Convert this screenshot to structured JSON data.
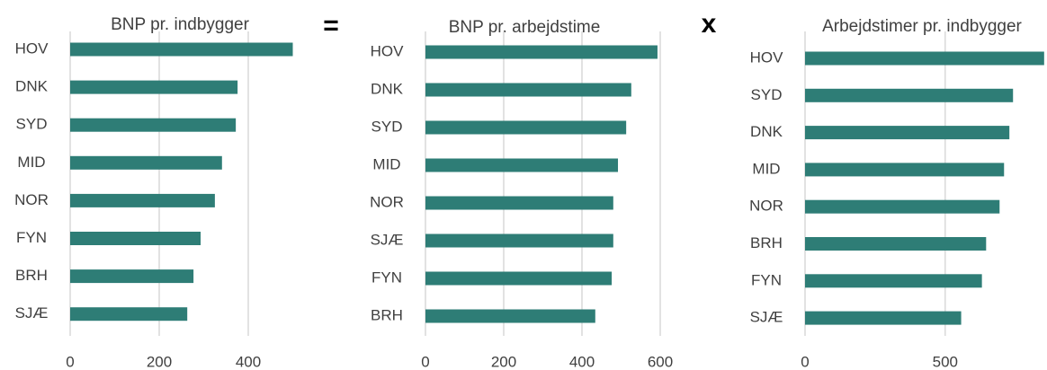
{
  "operators": [
    "=",
    "x"
  ],
  "chart_data": [
    {
      "type": "bar",
      "orientation": "horizontal",
      "title": "BNP pr. indbygger",
      "color": "#2e7d76",
      "categories": [
        "HOV",
        "DNK",
        "SYD",
        "MID",
        "NOR",
        "FYN",
        "BRH",
        "SJÆ"
      ],
      "values": [
        500,
        376,
        372,
        341,
        325,
        293,
        277,
        263
      ],
      "xlim": [
        0,
        500
      ],
      "xticks": [
        0,
        200,
        400
      ],
      "grid": true
    },
    {
      "type": "bar",
      "orientation": "horizontal",
      "title": "BNP pr. arbejdstime",
      "color": "#2e7d76",
      "categories": [
        "HOV",
        "DNK",
        "SYD",
        "MID",
        "NOR",
        "SJÆ",
        "FYN",
        "BRH"
      ],
      "values": [
        593,
        526,
        513,
        492,
        480,
        480,
        476,
        434
      ],
      "xlim": [
        0,
        600
      ],
      "xticks": [
        0,
        200,
        400,
        600
      ],
      "grid": true
    },
    {
      "type": "bar",
      "orientation": "horizontal",
      "title": "Arbejdstimer pr. indbygger",
      "color": "#2e7d76",
      "categories": [
        "HOV",
        "SYD",
        "DNK",
        "MID",
        "NOR",
        "BRH",
        "FYN",
        "SJÆ"
      ],
      "values": [
        853,
        742,
        729,
        710,
        694,
        646,
        631,
        557
      ],
      "xlim": [
        0,
        860
      ],
      "xticks": [
        0,
        500
      ],
      "grid": true
    }
  ]
}
